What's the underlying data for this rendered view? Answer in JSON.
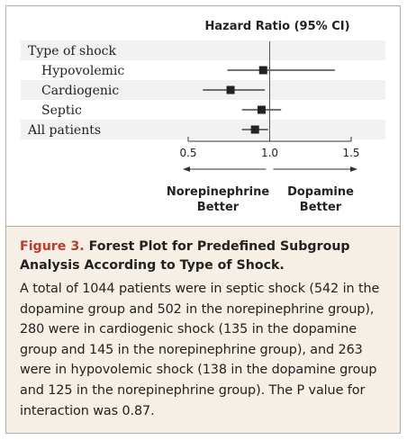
{
  "chart_data": {
    "type": "forest",
    "header": "Hazard Ratio (95% CI)",
    "rows": [
      {
        "label": "Type of shock",
        "indent": false,
        "shaded": true,
        "estimate": null,
        "ci": null
      },
      {
        "label": "Hypovolemic",
        "indent": true,
        "shaded": false,
        "estimate": 0.96,
        "ci": [
          0.74,
          1.4
        ]
      },
      {
        "label": "Cardiogenic",
        "indent": true,
        "shaded": true,
        "estimate": 0.76,
        "ci": [
          0.59,
          0.97
        ]
      },
      {
        "label": "Septic",
        "indent": true,
        "shaded": false,
        "estimate": 0.95,
        "ci": [
          0.83,
          1.07
        ]
      },
      {
        "label": "All patients",
        "indent": false,
        "shaded": true,
        "estimate": 0.91,
        "ci": [
          0.83,
          0.99
        ]
      }
    ],
    "xaxis": {
      "ticks": [
        0.5,
        1.0,
        1.5
      ],
      "tick_labels": [
        "0.5",
        "1.0",
        "1.5"
      ],
      "min": 0.5,
      "max": 1.5
    },
    "direction_left": [
      "Norepinephrine",
      "Better"
    ],
    "direction_right": [
      "Dopamine",
      "Better"
    ]
  },
  "caption": {
    "label": "Figure 3.",
    "title": "Forest Plot for Predefined Subgroup Analysis According to Type of Shock.",
    "body": "A total of 1044 patients were in septic shock (542 in the dopamine group and 502 in the norepinephrine group), 280 were in cardiogenic shock (135 in the dopamine group and 145 in the norepinephrine group), and 263 were in hypovolemic shock (138 in the dopamine group and 125 in the norepinephrine group). The P value for interaction was 0.87."
  },
  "colors": {
    "shade": "#f1f1f1",
    "ink": "#222222",
    "accent": "#c0392b",
    "caption_bg": "#f5efe5"
  }
}
